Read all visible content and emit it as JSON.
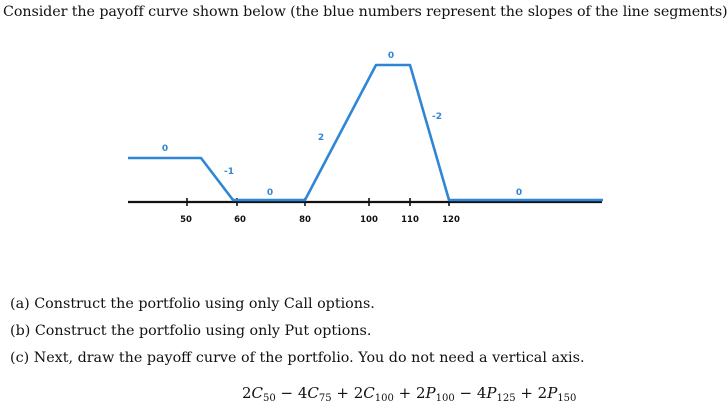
{
  "intro": "Consider the payoff curve shown below (the blue numbers represent the slopes of the line segments)",
  "figure": {
    "axis_labels": [
      "50",
      "60",
      "80",
      "100",
      "110",
      "120"
    ],
    "slope_labels": [
      "0",
      "-1",
      "0",
      "2",
      "0",
      "-2",
      "0"
    ],
    "colors": {
      "curve": "#2f86d6",
      "axis": "#111111"
    }
  },
  "questions": {
    "a": "(a) Construct the portfolio using only Call options.",
    "b": "(b) Construct the portfolio using only Put options.",
    "c": "(c) Next, draw the payoff curve of the portfolio. You do not need a vertical axis."
  },
  "formula": {
    "terms": [
      {
        "sign": "",
        "coef": "2",
        "sym": "C",
        "sub": "50"
      },
      {
        "sign": " − ",
        "coef": "4",
        "sym": "C",
        "sub": "75"
      },
      {
        "sign": " + ",
        "coef": "2",
        "sym": "C",
        "sub": "100"
      },
      {
        "sign": " + ",
        "coef": "2",
        "sym": "P",
        "sub": "100"
      },
      {
        "sign": " − ",
        "coef": "4",
        "sym": "P",
        "sub": "125"
      },
      {
        "sign": " + ",
        "coef": "2",
        "sym": "P",
        "sub": "150"
      }
    ]
  }
}
